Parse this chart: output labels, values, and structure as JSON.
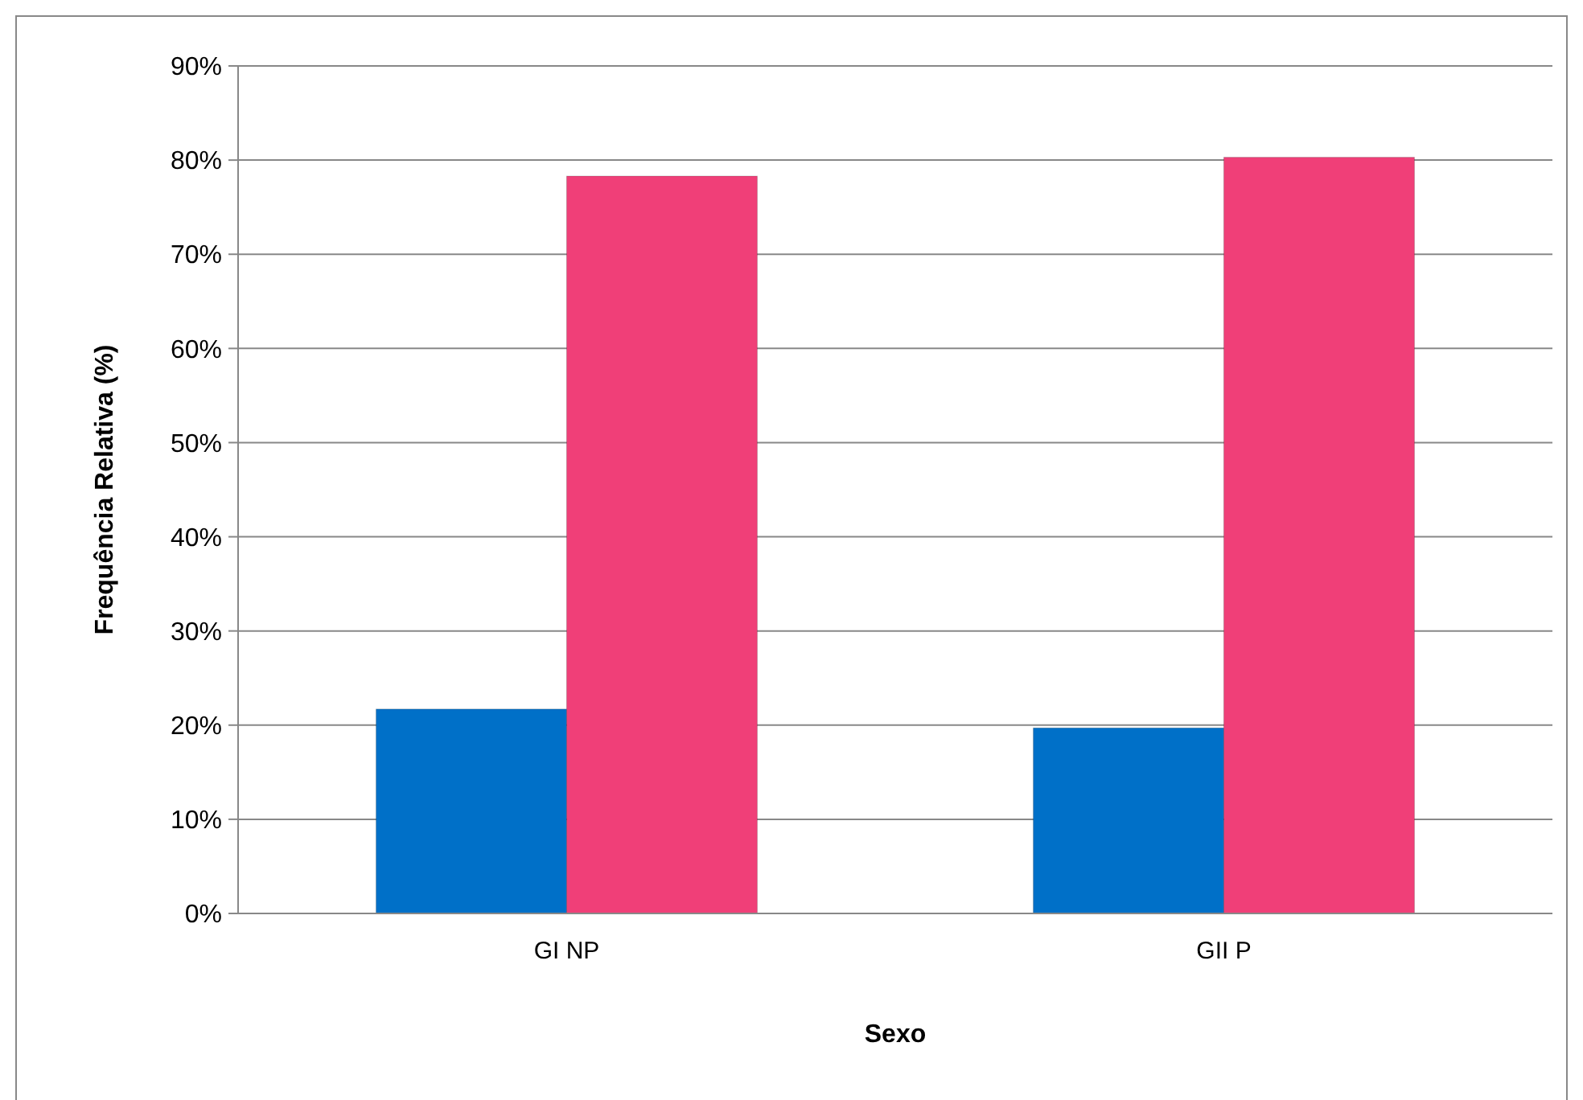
{
  "chart_data": {
    "type": "bar",
    "xlabel": "Sexo",
    "ylabel": "Frequência Relativa (%)",
    "categories": [
      "GI NP",
      "GII P"
    ],
    "series": [
      {
        "color": "#0070c8",
        "values": [
          21.7,
          19.7
        ]
      },
      {
        "color": "#f03f78",
        "values": [
          78.3,
          80.3
        ]
      }
    ],
    "ylim": [
      0,
      90
    ],
    "yticks": [
      {
        "value": 0,
        "label": "0%"
      },
      {
        "value": 10,
        "label": "10%"
      },
      {
        "value": 20,
        "label": "20%"
      },
      {
        "value": 30,
        "label": "30%"
      },
      {
        "value": 40,
        "label": "40%"
      },
      {
        "value": 50,
        "label": "50%"
      },
      {
        "value": 60,
        "label": "60%"
      },
      {
        "value": 70,
        "label": "70%"
      },
      {
        "value": 80,
        "label": "80%"
      },
      {
        "value": 90,
        "label": "90%"
      }
    ],
    "grid": "y"
  }
}
